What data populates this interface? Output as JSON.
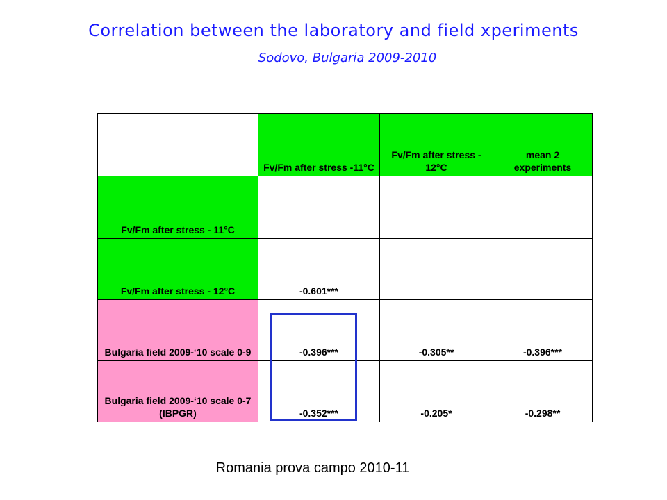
{
  "title": "Correlation between the laboratory and field xperiments",
  "subtitle": "Sodovo, Bulgaria 2009-2010",
  "table": {
    "col_headers": [
      "",
      "Fv/Fm after stress -11°C",
      "Fv/Fm after stress - 12°C",
      "mean 2 experiments"
    ],
    "rows": [
      {
        "label": "Fv/Fm after stress - 11°C",
        "values": [
          "",
          "",
          ""
        ]
      },
      {
        "label": "Fv/Fm after stress - 12°C",
        "values": [
          "-0.601***",
          "",
          ""
        ]
      },
      {
        "label": "Bulgaria field 2009-‘10 scale 0-9",
        "values": [
          "-0.396***",
          "-0.305**",
          "-0.396***"
        ]
      },
      {
        "label": "Bulgaria field 2009-‘10 scale 0-7 (IBPGR)",
        "values": [
          "-0.352***",
          "-0.205*",
          "-0.298**"
        ]
      }
    ]
  },
  "footer": "Romania prova campo 2010-11",
  "colors": {
    "title": "#1a1aff",
    "header_green": "#00ee00",
    "field_pink": "#ff99cc",
    "highlight_border": "#2233cc"
  }
}
